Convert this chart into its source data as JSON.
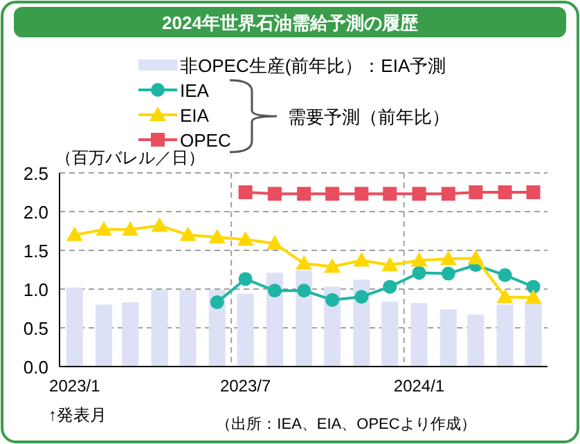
{
  "chart_data": {
    "type": "bar",
    "title": "2024年世界石油需給予測の履歴",
    "ylabel": "（百万バレル／日）",
    "xlabel": "↑発表月",
    "x": [
      "2023-01",
      "2023-02",
      "2023-03",
      "2023-04",
      "2023-05",
      "2023-06",
      "2023-07",
      "2023-08",
      "2023-09",
      "2023-10",
      "2023-11",
      "2023-12",
      "2024-01",
      "2024-02",
      "2024-03",
      "2024-04",
      "2024-05"
    ],
    "series": [
      {
        "name": "非OPEC生産(前年比）：EIA予測",
        "color": "#dde1f5",
        "values": [
          1.02,
          0.8,
          0.83,
          0.99,
          0.99,
          0.99,
          0.94,
          1.21,
          1.24,
          1.03,
          1.12,
          0.84,
          0.82,
          0.74,
          0.67,
          0.8,
          0.82
        ]
      },
      {
        "name": "IEA",
        "type": "line",
        "marker": "circle",
        "color": "#1fb5a5",
        "values": [
          null,
          null,
          null,
          null,
          null,
          0.83,
          1.13,
          0.98,
          0.98,
          0.86,
          0.9,
          1.03,
          1.21,
          1.2,
          1.31,
          1.18,
          1.03
        ]
      },
      {
        "name": "EIA",
        "type": "line",
        "marker": "triangle",
        "color": "#ffd700",
        "values": [
          1.7,
          1.77,
          1.77,
          1.82,
          1.7,
          1.67,
          1.64,
          1.59,
          1.33,
          1.29,
          1.37,
          1.31,
          1.37,
          1.39,
          1.4,
          0.9,
          0.89
        ]
      },
      {
        "name": "OPEC",
        "type": "line",
        "marker": "square",
        "color": "#e94e5e",
        "values": [
          null,
          null,
          null,
          null,
          null,
          null,
          2.25,
          2.23,
          2.23,
          2.23,
          2.23,
          2.23,
          2.23,
          2.23,
          2.25,
          2.25,
          2.25
        ]
      }
    ],
    "xlim": [
      "2022-12-16",
      "2024-05-16"
    ],
    "xticks": [
      {
        "value": "2023-01",
        "label": "2023/1"
      },
      {
        "value": "2023-07",
        "label": "2023/7"
      },
      {
        "value": "2024-01",
        "label": "2024/1"
      }
    ],
    "ylim": [
      0,
      2.5
    ],
    "yticks": [
      {
        "value": 0,
        "label": "0.0"
      },
      {
        "value": 0.5,
        "label": "0.5"
      },
      {
        "value": 1,
        "label": "1.0"
      },
      {
        "value": 1.5,
        "label": "1.5"
      },
      {
        "value": 2,
        "label": "2.0"
      },
      {
        "value": 2.5,
        "label": "2.5"
      }
    ],
    "ref_lines": [
      {
        "axis": "x",
        "value": "2023-06-16",
        "line_style": "dashed",
        "color": "#a0a0a0"
      },
      {
        "axis": "x",
        "value": "2023-12-16",
        "line_style": "dashed",
        "color": "#a0a0a0"
      }
    ],
    "grid": "y",
    "legend": "top",
    "annotations": [
      "需要予測（前年比）",
      "（出所：IEA、EIA、OPECより作成）"
    ]
  }
}
